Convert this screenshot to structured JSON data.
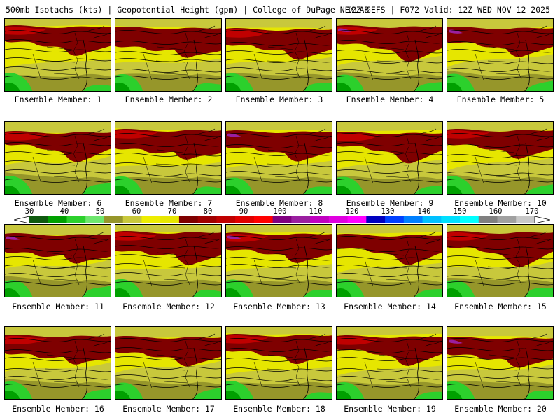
{
  "header": {
    "left": "500mb Isotachs (kts) | Geopotential Height (gpm) | College of DuPage NEXLAB",
    "right": "12Z GEFS | F072 Valid: 12Z WED NOV 12 2025"
  },
  "colorbar": {
    "labels": [
      "30",
      "40",
      "50",
      "60",
      "70",
      "80",
      "90",
      "100",
      "110",
      "120",
      "130",
      "140",
      "150",
      "160",
      "170"
    ],
    "colors": [
      "#0f5a0f",
      "#00a000",
      "#2cd02c",
      "#6ee66e",
      "#96962a",
      "#c8c83c",
      "#eded00",
      "#e6e600",
      "#7f0000",
      "#a00000",
      "#c00000",
      "#e00000",
      "#ff0000",
      "#800080",
      "#9a1fa0",
      "#c000c0",
      "#e000e0",
      "#ff00ff",
      "#0000c0",
      "#0040ff",
      "#0080ff",
      "#00c0ff",
      "#00e0ff",
      "#00ffff",
      "#808080",
      "#a0a0a0",
      "#c8c8c8"
    ]
  },
  "map_colors": {
    "green_dark": "#00a000",
    "green": "#2cd02c",
    "olive": "#96962a",
    "khaki": "#c8c83c",
    "yellow": "#e6e600",
    "maroon": "#7f0000",
    "red": "#c00000",
    "purple": "#9a1fa0",
    "contour": "#000000"
  },
  "panels": [
    {
      "caption": "Ensemble Member: 1"
    },
    {
      "caption": "Ensemble Member: 2"
    },
    {
      "caption": "Ensemble Member: 3"
    },
    {
      "caption": "Ensemble Member: 4"
    },
    {
      "caption": "Ensemble Member: 5"
    },
    {
      "caption": "Ensemble Member: 6"
    },
    {
      "caption": "Ensemble Member: 7"
    },
    {
      "caption": "Ensemble Member: 8"
    },
    {
      "caption": "Ensemble Member: 9"
    },
    {
      "caption": "Ensemble Member: 10"
    },
    {
      "caption": "Ensemble Member: 11"
    },
    {
      "caption": "Ensemble Member: 12"
    },
    {
      "caption": "Ensemble Member: 13"
    },
    {
      "caption": "Ensemble Member: 14"
    },
    {
      "caption": "Ensemble Member: 15"
    },
    {
      "caption": "Ensemble Member: 16"
    },
    {
      "caption": "Ensemble Member: 17"
    },
    {
      "caption": "Ensemble Member: 18"
    },
    {
      "caption": "Ensemble Member: 19"
    },
    {
      "caption": "Ensemble Member: 20"
    }
  ]
}
